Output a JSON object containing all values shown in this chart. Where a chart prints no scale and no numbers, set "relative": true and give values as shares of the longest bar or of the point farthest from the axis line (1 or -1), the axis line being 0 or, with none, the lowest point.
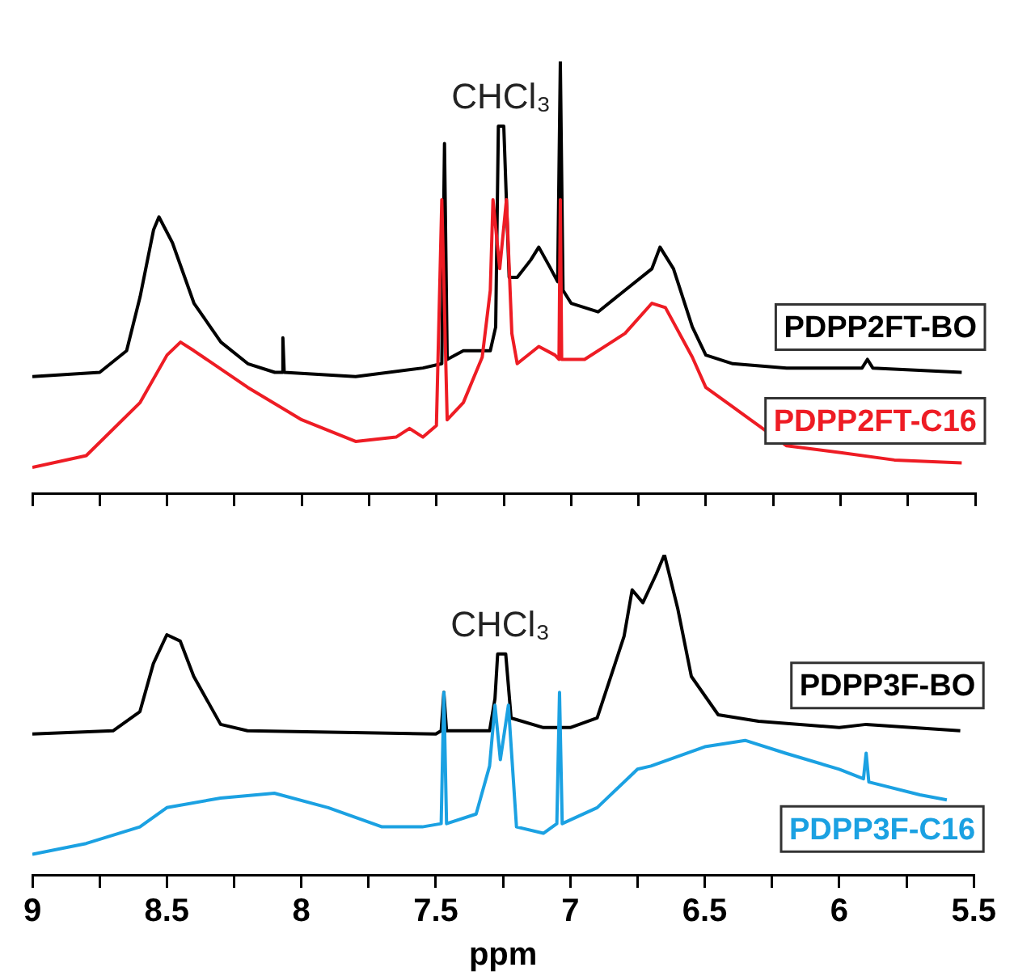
{
  "chart_data": [
    {
      "type": "line",
      "relative": true,
      "xlim": [
        9,
        5.5
      ],
      "xticks": [
        9,
        {
          "value": 8.75,
          "label": null
        },
        8.5,
        {
          "value": 8.25,
          "label": null
        },
        8,
        {
          "value": 7.75,
          "label": null
        },
        7.5,
        {
          "value": 7.25,
          "label": null
        },
        7,
        {
          "value": 6.75,
          "label": null
        },
        6.5,
        {
          "value": 6.25,
          "label": null
        },
        6,
        {
          "value": 5.75,
          "label": null
        },
        5.5
      ],
      "tick_labels": false,
      "legend": false,
      "annotations": [
        {
          "text": "CHCl₃",
          "x": 7.26,
          "y": 0.85
        }
      ],
      "series": [
        {
          "name": "PDPP2FT-BO",
          "color": "#000000",
          "x": [
            9.0,
            8.75,
            8.65,
            8.6,
            8.55,
            8.53,
            8.48,
            8.4,
            8.3,
            8.2,
            8.1,
            8.075,
            8.07,
            8.065,
            7.8,
            7.55,
            7.48,
            7.47,
            7.46,
            7.4,
            7.3,
            7.28,
            7.27,
            7.25,
            7.23,
            7.2,
            7.15,
            7.12,
            7.08,
            7.05,
            7.04,
            7.03,
            7.0,
            6.9,
            6.8,
            6.7,
            6.67,
            6.62,
            6.55,
            6.5,
            6.4,
            6.2,
            5.92,
            5.9,
            5.88,
            5.55
          ],
          "values": [
            0.27,
            0.28,
            0.33,
            0.455,
            0.61,
            0.64,
            0.58,
            0.44,
            0.35,
            0.3,
            0.28,
            0.28,
            0.36,
            0.28,
            0.27,
            0.29,
            0.3,
            0.81,
            0.31,
            0.33,
            0.33,
            0.385,
            0.85,
            0.85,
            0.5,
            0.5,
            0.54,
            0.57,
            0.525,
            0.49,
            1.0,
            0.47,
            0.44,
            0.42,
            0.47,
            0.52,
            0.57,
            0.52,
            0.385,
            0.32,
            0.3,
            0.29,
            0.29,
            0.31,
            0.29,
            0.28
          ]
        },
        {
          "name": "PDPP2FT-C16",
          "color": "#ee1c24",
          "x": [
            9.0,
            8.8,
            8.6,
            8.5,
            8.45,
            8.4,
            8.2,
            8.0,
            7.8,
            7.65,
            7.6,
            7.55,
            7.5,
            7.48,
            7.46,
            7.4,
            7.33,
            7.3,
            7.29,
            7.265,
            7.24,
            7.22,
            7.2,
            7.12,
            7.06,
            7.045,
            7.04,
            7.035,
            6.95,
            6.85,
            6.8,
            6.7,
            6.65,
            6.55,
            6.5,
            6.4,
            6.2,
            6.0,
            5.8,
            5.55
          ],
          "values": [
            0.06,
            0.087,
            0.21,
            0.32,
            0.35,
            0.33,
            0.245,
            0.17,
            0.12,
            0.13,
            0.15,
            0.13,
            0.157,
            0.68,
            0.17,
            0.21,
            0.315,
            0.47,
            0.68,
            0.52,
            0.68,
            0.37,
            0.3,
            0.34,
            0.32,
            0.31,
            0.68,
            0.31,
            0.31,
            0.35,
            0.37,
            0.44,
            0.43,
            0.315,
            0.245,
            0.2,
            0.11,
            0.094,
            0.077,
            0.07
          ]
        }
      ]
    },
    {
      "type": "line",
      "relative": true,
      "xlabel": "ppm",
      "xlim": [
        9,
        5.5
      ],
      "xticks": [
        9,
        {
          "value": 8.75,
          "label": null
        },
        8.5,
        {
          "value": 8.25,
          "label": null
        },
        8,
        {
          "value": 7.75,
          "label": null
        },
        7.5,
        {
          "value": 7.25,
          "label": null
        },
        7,
        {
          "value": 6.75,
          "label": null
        },
        6.5,
        {
          "value": 6.25,
          "label": null
        },
        6,
        {
          "value": 5.75,
          "label": null
        },
        5.5
      ],
      "tick_labels": "x",
      "legend": false,
      "annotations": [
        {
          "text": "CHCl₃",
          "x": 7.26,
          "y": 0.69
        }
      ],
      "series": [
        {
          "name": "PDPP3F-BO",
          "color": "#000000",
          "x": [
            9.0,
            8.7,
            8.6,
            8.55,
            8.5,
            8.45,
            8.4,
            8.3,
            8.2,
            7.5,
            7.48,
            7.47,
            7.46,
            7.3,
            7.28,
            7.27,
            7.24,
            7.22,
            7.1,
            7.0,
            6.9,
            6.8,
            6.77,
            6.73,
            6.68,
            6.65,
            6.6,
            6.55,
            6.45,
            6.3,
            6.0,
            5.9,
            5.55
          ],
          "values": [
            0.44,
            0.45,
            0.51,
            0.66,
            0.75,
            0.73,
            0.62,
            0.47,
            0.45,
            0.44,
            0.45,
            0.57,
            0.45,
            0.45,
            0.55,
            0.69,
            0.69,
            0.49,
            0.46,
            0.46,
            0.49,
            0.745,
            0.89,
            0.85,
            0.94,
            1.0,
            0.83,
            0.62,
            0.5,
            0.48,
            0.46,
            0.47,
            0.45
          ]
        },
        {
          "name": "PDPP3F-C16",
          "color": "#1ba1e2",
          "x": [
            9.0,
            8.8,
            8.6,
            8.5,
            8.3,
            8.1,
            7.9,
            7.7,
            7.55,
            7.48,
            7.47,
            7.46,
            7.35,
            7.3,
            7.28,
            7.26,
            7.23,
            7.2,
            7.1,
            7.05,
            7.04,
            7.03,
            6.9,
            6.75,
            6.7,
            6.5,
            6.35,
            6.2,
            6.0,
            5.91,
            5.9,
            5.89,
            5.7,
            5.6
          ],
          "values": [
            0.064,
            0.098,
            0.15,
            0.21,
            0.24,
            0.255,
            0.21,
            0.15,
            0.15,
            0.16,
            0.57,
            0.16,
            0.19,
            0.34,
            0.53,
            0.36,
            0.53,
            0.15,
            0.13,
            0.16,
            0.57,
            0.16,
            0.21,
            0.33,
            0.34,
            0.4,
            0.42,
            0.38,
            0.33,
            0.3,
            0.38,
            0.29,
            0.25,
            0.234
          ]
        }
      ]
    }
  ]
}
